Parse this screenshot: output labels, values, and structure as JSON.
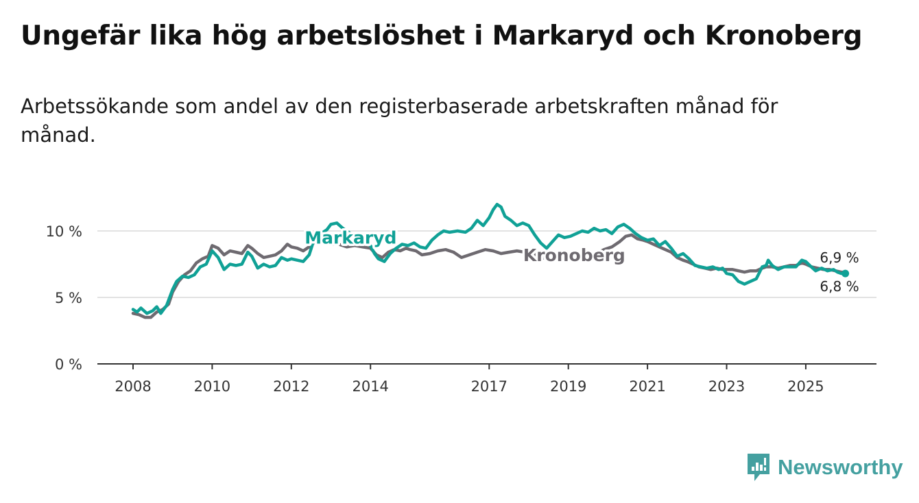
{
  "title": "Ungefär lika hög arbetslöshet i Markaryd och Kronoberg",
  "subtitle": "Arbetssökande som andel av den registerbaserade arbetskraften månad för månad.",
  "brand": {
    "name": "Newsworthy",
    "icon": "newsworthy-logo-icon",
    "color": "#44a0a0"
  },
  "chart_data": {
    "type": "line",
    "title": "Ungefär lika hög arbetslöshet i Markaryd och Kronoberg",
    "xlabel": "",
    "ylabel": "",
    "xlim": [
      2007.75,
      2026.6
    ],
    "ylim": [
      0,
      12.5
    ],
    "grid": true,
    "x_ticks": [
      {
        "value": 2008,
        "label": "2008"
      },
      {
        "value": 2010,
        "label": "2010"
      },
      {
        "value": 2012,
        "label": "2012"
      },
      {
        "value": 2014,
        "label": "2014"
      },
      {
        "value": 2017,
        "label": "2017"
      },
      {
        "value": 2019,
        "label": "2019"
      },
      {
        "value": 2021,
        "label": "2021"
      },
      {
        "value": 2023,
        "label": "2023"
      },
      {
        "value": 2025,
        "label": "2025"
      }
    ],
    "y_ticks": [
      {
        "value": 0,
        "label": "0 %"
      },
      {
        "value": 5,
        "label": "5 %"
      },
      {
        "value": 10,
        "label": "10 %"
      }
    ],
    "series": [
      {
        "name": "Kronoberg",
        "color": "#6e6a70",
        "label": {
          "text": "Kronoberg",
          "x": 2019.15,
          "y": 8.2,
          "anchor": "middle"
        },
        "end_label": "6,9 %",
        "points": [
          [
            2008.0,
            3.8
          ],
          [
            2008.15,
            3.7
          ],
          [
            2008.3,
            3.5
          ],
          [
            2008.45,
            3.5
          ],
          [
            2008.6,
            3.9
          ],
          [
            2008.75,
            4.1
          ],
          [
            2008.9,
            4.5
          ],
          [
            2009.0,
            5.4
          ],
          [
            2009.15,
            6.2
          ],
          [
            2009.3,
            6.7
          ],
          [
            2009.45,
            7.0
          ],
          [
            2009.6,
            7.6
          ],
          [
            2009.75,
            7.9
          ],
          [
            2009.9,
            8.1
          ],
          [
            2010.0,
            8.9
          ],
          [
            2010.15,
            8.7
          ],
          [
            2010.3,
            8.2
          ],
          [
            2010.45,
            8.5
          ],
          [
            2010.6,
            8.4
          ],
          [
            2010.75,
            8.3
          ],
          [
            2010.9,
            8.9
          ],
          [
            2011.0,
            8.7
          ],
          [
            2011.15,
            8.3
          ],
          [
            2011.3,
            8.0
          ],
          [
            2011.45,
            8.1
          ],
          [
            2011.6,
            8.2
          ],
          [
            2011.75,
            8.5
          ],
          [
            2011.9,
            9.0
          ],
          [
            2012.0,
            8.8
          ],
          [
            2012.15,
            8.7
          ],
          [
            2012.3,
            8.5
          ],
          [
            2012.45,
            8.8
          ],
          [
            2012.6,
            9.2
          ],
          [
            2012.75,
            9.3
          ],
          [
            2012.9,
            9.1
          ],
          [
            2013.0,
            9.0
          ],
          [
            2013.2,
            9.0
          ],
          [
            2013.4,
            8.8
          ],
          [
            2013.6,
            8.9
          ],
          [
            2013.8,
            8.8
          ],
          [
            2014.0,
            8.7
          ],
          [
            2014.15,
            8.2
          ],
          [
            2014.3,
            8.0
          ],
          [
            2014.45,
            8.4
          ],
          [
            2014.6,
            8.6
          ],
          [
            2014.75,
            8.5
          ],
          [
            2014.9,
            8.7
          ],
          [
            2015.0,
            8.6
          ],
          [
            2015.15,
            8.5
          ],
          [
            2015.3,
            8.2
          ],
          [
            2015.5,
            8.3
          ],
          [
            2015.7,
            8.5
          ],
          [
            2015.9,
            8.6
          ],
          [
            2016.1,
            8.4
          ],
          [
            2016.3,
            8.0
          ],
          [
            2016.5,
            8.2
          ],
          [
            2016.7,
            8.4
          ],
          [
            2016.9,
            8.6
          ],
          [
            2017.1,
            8.5
          ],
          [
            2017.3,
            8.3
          ],
          [
            2017.5,
            8.4
          ],
          [
            2017.7,
            8.5
          ],
          [
            2017.9,
            8.4
          ],
          [
            2018.1,
            8.3
          ],
          [
            2018.3,
            8.0
          ],
          [
            2018.5,
            7.9
          ],
          [
            2018.7,
            8.0
          ],
          [
            2018.9,
            8.1
          ],
          [
            2019.1,
            8.0
          ],
          [
            2019.3,
            7.9
          ],
          [
            2019.5,
            8.0
          ],
          [
            2019.7,
            8.3
          ],
          [
            2019.9,
            8.6
          ],
          [
            2020.1,
            8.8
          ],
          [
            2020.3,
            9.2
          ],
          [
            2020.45,
            9.6
          ],
          [
            2020.6,
            9.7
          ],
          [
            2020.75,
            9.4
          ],
          [
            2020.9,
            9.3
          ],
          [
            2021.0,
            9.2
          ],
          [
            2021.15,
            9.0
          ],
          [
            2021.3,
            8.8
          ],
          [
            2021.45,
            8.6
          ],
          [
            2021.6,
            8.4
          ],
          [
            2021.75,
            8.0
          ],
          [
            2021.9,
            7.8
          ],
          [
            2022.0,
            7.7
          ],
          [
            2022.15,
            7.5
          ],
          [
            2022.3,
            7.3
          ],
          [
            2022.45,
            7.2
          ],
          [
            2022.6,
            7.1
          ],
          [
            2022.75,
            7.2
          ],
          [
            2022.9,
            7.1
          ],
          [
            2023.0,
            7.1
          ],
          [
            2023.15,
            7.1
          ],
          [
            2023.3,
            7.0
          ],
          [
            2023.45,
            6.9
          ],
          [
            2023.6,
            7.0
          ],
          [
            2023.75,
            7.0
          ],
          [
            2023.9,
            7.2
          ],
          [
            2024.0,
            7.3
          ],
          [
            2024.15,
            7.3
          ],
          [
            2024.3,
            7.2
          ],
          [
            2024.45,
            7.3
          ],
          [
            2024.6,
            7.4
          ],
          [
            2024.75,
            7.4
          ],
          [
            2024.9,
            7.6
          ],
          [
            2025.0,
            7.5
          ],
          [
            2025.15,
            7.3
          ],
          [
            2025.3,
            7.2
          ],
          [
            2025.45,
            7.1
          ],
          [
            2025.6,
            7.1
          ],
          [
            2025.75,
            7.0
          ],
          [
            2025.9,
            6.9
          ],
          [
            2026.0,
            6.9
          ]
        ]
      },
      {
        "name": "Markaryd",
        "color": "#10a196",
        "label": {
          "text": "Markaryd",
          "x": 2013.5,
          "y": 9.5,
          "anchor": "middle"
        },
        "end_label": "6,8 %",
        "points": [
          [
            2008.0,
            4.1
          ],
          [
            2008.1,
            3.9
          ],
          [
            2008.2,
            4.2
          ],
          [
            2008.35,
            3.8
          ],
          [
            2008.5,
            4.0
          ],
          [
            2008.6,
            4.3
          ],
          [
            2008.7,
            3.8
          ],
          [
            2008.85,
            4.4
          ],
          [
            2009.0,
            5.6
          ],
          [
            2009.1,
            6.2
          ],
          [
            2009.25,
            6.6
          ],
          [
            2009.4,
            6.5
          ],
          [
            2009.55,
            6.7
          ],
          [
            2009.7,
            7.3
          ],
          [
            2009.85,
            7.5
          ],
          [
            2010.0,
            8.5
          ],
          [
            2010.15,
            8.0
          ],
          [
            2010.3,
            7.1
          ],
          [
            2010.45,
            7.5
          ],
          [
            2010.6,
            7.4
          ],
          [
            2010.75,
            7.5
          ],
          [
            2010.9,
            8.4
          ],
          [
            2011.0,
            8.1
          ],
          [
            2011.15,
            7.2
          ],
          [
            2011.3,
            7.5
          ],
          [
            2011.45,
            7.3
          ],
          [
            2011.6,
            7.4
          ],
          [
            2011.75,
            8.0
          ],
          [
            2011.9,
            7.8
          ],
          [
            2012.0,
            7.9
          ],
          [
            2012.15,
            7.8
          ],
          [
            2012.3,
            7.7
          ],
          [
            2012.45,
            8.2
          ],
          [
            2012.6,
            9.6
          ],
          [
            2012.75,
            9.8
          ],
          [
            2012.9,
            10.1
          ],
          [
            2013.0,
            10.5
          ],
          [
            2013.15,
            10.6
          ],
          [
            2013.3,
            10.2
          ],
          [
            2013.5,
            9.8
          ],
          [
            2013.7,
            9.4
          ],
          [
            2013.85,
            9.2
          ],
          [
            2014.0,
            8.9
          ],
          [
            2014.1,
            8.3
          ],
          [
            2014.2,
            7.9
          ],
          [
            2014.35,
            7.7
          ],
          [
            2014.5,
            8.3
          ],
          [
            2014.65,
            8.7
          ],
          [
            2014.8,
            9.0
          ],
          [
            2014.95,
            8.9
          ],
          [
            2015.1,
            9.1
          ],
          [
            2015.25,
            8.8
          ],
          [
            2015.4,
            8.7
          ],
          [
            2015.55,
            9.3
          ],
          [
            2015.7,
            9.7
          ],
          [
            2015.85,
            10.0
          ],
          [
            2016.0,
            9.9
          ],
          [
            2016.2,
            10.0
          ],
          [
            2016.4,
            9.9
          ],
          [
            2016.55,
            10.2
          ],
          [
            2016.7,
            10.8
          ],
          [
            2016.85,
            10.4
          ],
          [
            2017.0,
            11.0
          ],
          [
            2017.1,
            11.6
          ],
          [
            2017.2,
            12.0
          ],
          [
            2017.3,
            11.8
          ],
          [
            2017.4,
            11.1
          ],
          [
            2017.55,
            10.8
          ],
          [
            2017.7,
            10.4
          ],
          [
            2017.85,
            10.6
          ],
          [
            2018.0,
            10.4
          ],
          [
            2018.15,
            9.7
          ],
          [
            2018.3,
            9.1
          ],
          [
            2018.45,
            8.7
          ],
          [
            2018.6,
            9.2
          ],
          [
            2018.75,
            9.7
          ],
          [
            2018.9,
            9.5
          ],
          [
            2019.05,
            9.6
          ],
          [
            2019.2,
            9.8
          ],
          [
            2019.35,
            10.0
          ],
          [
            2019.5,
            9.9
          ],
          [
            2019.65,
            10.2
          ],
          [
            2019.8,
            10.0
          ],
          [
            2019.95,
            10.1
          ],
          [
            2020.1,
            9.8
          ],
          [
            2020.25,
            10.3
          ],
          [
            2020.4,
            10.5
          ],
          [
            2020.55,
            10.2
          ],
          [
            2020.7,
            9.8
          ],
          [
            2020.85,
            9.5
          ],
          [
            2021.0,
            9.3
          ],
          [
            2021.15,
            9.4
          ],
          [
            2021.3,
            8.9
          ],
          [
            2021.45,
            9.2
          ],
          [
            2021.6,
            8.7
          ],
          [
            2021.75,
            8.1
          ],
          [
            2021.9,
            8.3
          ],
          [
            2022.05,
            7.9
          ],
          [
            2022.2,
            7.4
          ],
          [
            2022.35,
            7.3
          ],
          [
            2022.5,
            7.2
          ],
          [
            2022.65,
            7.3
          ],
          [
            2022.8,
            7.1
          ],
          [
            2022.9,
            7.2
          ],
          [
            2023.0,
            6.8
          ],
          [
            2023.15,
            6.7
          ],
          [
            2023.3,
            6.2
          ],
          [
            2023.45,
            6.0
          ],
          [
            2023.6,
            6.2
          ],
          [
            2023.75,
            6.4
          ],
          [
            2023.9,
            7.3
          ],
          [
            2024.0,
            7.4
          ],
          [
            2024.05,
            7.8
          ],
          [
            2024.15,
            7.4
          ],
          [
            2024.3,
            7.1
          ],
          [
            2024.45,
            7.3
          ],
          [
            2024.6,
            7.3
          ],
          [
            2024.75,
            7.3
          ],
          [
            2024.9,
            7.8
          ],
          [
            2025.0,
            7.7
          ],
          [
            2025.1,
            7.4
          ],
          [
            2025.25,
            7.0
          ],
          [
            2025.4,
            7.2
          ],
          [
            2025.55,
            7.0
          ],
          [
            2025.7,
            7.1
          ],
          [
            2025.8,
            6.9
          ],
          [
            2025.9,
            6.8
          ],
          [
            2026.0,
            6.8
          ]
        ]
      }
    ]
  }
}
